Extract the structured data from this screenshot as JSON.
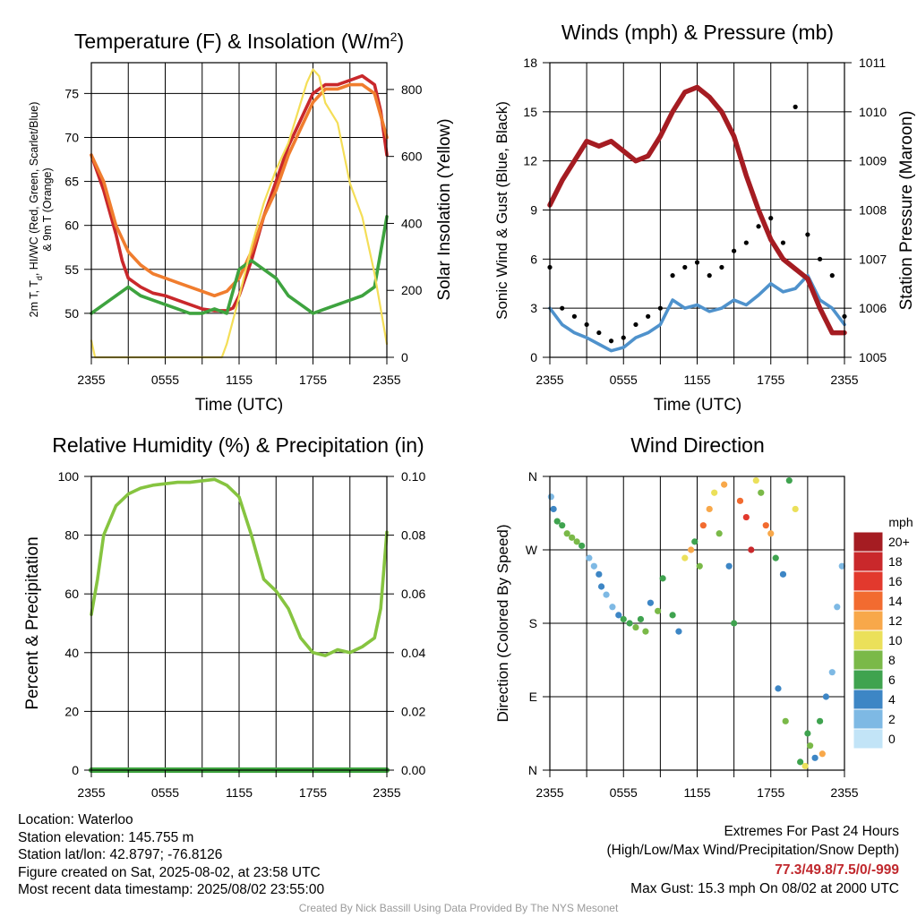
{
  "panels": {
    "temperature": {
      "title": "Temperature (F) & Insolation (W/m",
      "title_sup": "2",
      "title_end": ")",
      "ylabel_line1": "2m T, T",
      "ylabel_sub": "d",
      "ylabel_line1_end": ", HI/WC (Red, Green, Scarlet/Blue)",
      "ylabel_line2": "& 9m T (Orange)",
      "y2label": "Solar Insolation (Yellow)",
      "xlabel": "Time (UTC)"
    },
    "winds": {
      "title": "Winds (mph) & Pressure (mb)",
      "ylabel": "Sonic Wind & Gust (Blue, Black)",
      "y2label": "Station Pressure (Maroon)",
      "xlabel": "Time (UTC)"
    },
    "humidity": {
      "title": "Relative Humidity (%) & Precipitation (in)",
      "ylabel": "Percent & Precipitation"
    },
    "direction": {
      "title": "Wind Direction",
      "ylabel": "Direction (Colored By Speed)",
      "legend_title": "mph",
      "legend_labels": [
        "20+",
        "18",
        "16",
        "14",
        "12",
        "10",
        "8",
        "6",
        "4",
        "2",
        "0"
      ],
      "legend_colors": [
        "#a51c22",
        "#c9282b",
        "#e2392d",
        "#f26b30",
        "#f8a84a",
        "#ebe05a",
        "#7ab948",
        "#3fa34f",
        "#3d86c5",
        "#7eb9e4",
        "#c2e4f7"
      ]
    }
  },
  "footer": {
    "location": "Location: Waterloo",
    "elevation": "Station elevation: 145.755 m",
    "latlon": "Station lat/lon: 42.8797; -76.8126",
    "created": "Figure created on Sat, 2025-08-02, at 23:58 UTC",
    "recent": "Most recent data timestamp: 2025/08/02 23:55:00",
    "extremes_title": "Extremes For Past 24 Hours",
    "extremes_subtitle": "(High/Low/Max Wind/Precipitation/Snow Depth)",
    "extremes_values": "77.3/49.8/7.5/0/-999",
    "max_gust": "Max Gust: 15.3 mph On 08/02 at 2000 UTC",
    "credit": "Created By Nick Bassill Using Data Provided By The NYS Mesonet"
  },
  "chart_data": [
    {
      "type": "line",
      "title": "Temperature (F) & Insolation (W/m2)",
      "xlabel": "Time (UTC)",
      "ylabel": "2m T, Td, HI/WC (Red, Green, Scarlet/Blue) & 9m T (Orange)",
      "y2label": "Solar Insolation (Yellow)",
      "x_ticks": [
        "2355",
        "0555",
        "1155",
        "1755",
        "2355"
      ],
      "x_hours": [
        0,
        3,
        6,
        9,
        12,
        15,
        18,
        21,
        24
      ],
      "y_ticks": [
        50,
        55,
        60,
        65,
        70,
        75
      ],
      "ylim": [
        45,
        78.5
      ],
      "y2_ticks": [
        0,
        200,
        400,
        600,
        800
      ],
      "y2lim": [
        0,
        880
      ],
      "grid": true,
      "series": [
        {
          "name": "2m T",
          "color": "#c9282b",
          "axis": "left",
          "x": [
            0,
            1,
            2,
            2.5,
            3,
            4,
            5,
            6,
            7,
            8,
            9,
            10,
            11,
            11.5,
            12,
            13,
            14,
            15,
            16,
            17,
            18,
            19,
            20,
            21,
            22,
            23,
            23.5,
            24
          ],
          "y": [
            68,
            64,
            59,
            56,
            54,
            53,
            52.3,
            52,
            51.5,
            51,
            50.5,
            50.3,
            50.3,
            50.6,
            52,
            56,
            61,
            65,
            69,
            72,
            75,
            76,
            76,
            76.5,
            77,
            76,
            73,
            68
          ]
        },
        {
          "name": "9m T",
          "color": "#f07d2e",
          "axis": "left",
          "x": [
            0,
            1,
            2,
            3,
            4,
            5,
            6,
            7,
            8,
            9,
            10,
            11,
            12,
            13,
            14,
            15,
            16,
            17,
            18,
            19,
            20,
            21,
            22,
            23,
            24
          ],
          "y": [
            68,
            65,
            60,
            57,
            55.5,
            54.5,
            54,
            53.5,
            53,
            52.5,
            52,
            52.5,
            54,
            57,
            61,
            64,
            68,
            71,
            74,
            75.5,
            75.5,
            76,
            76,
            75,
            70
          ]
        },
        {
          "name": "Td",
          "color": "#3ea33f",
          "axis": "left",
          "x": [
            0,
            1,
            2,
            3,
            4,
            5,
            6,
            7,
            8,
            9,
            10,
            11,
            12,
            13,
            14,
            15,
            16,
            17,
            18,
            19,
            20,
            21,
            22,
            23,
            23.5,
            24
          ],
          "y": [
            50,
            51,
            52,
            53,
            52,
            51.5,
            51,
            50.5,
            50,
            50,
            50.5,
            50,
            55,
            56,
            55,
            54,
            52,
            51,
            50,
            50.5,
            51,
            51.5,
            52,
            53,
            57,
            61
          ]
        },
        {
          "name": "Solar Insolation",
          "color": "#f4de57",
          "axis": "right",
          "x": [
            0,
            0.3,
            1,
            2,
            3,
            4,
            5,
            6,
            7,
            8,
            9,
            10,
            10.6,
            11,
            12,
            13,
            14,
            15,
            16,
            17,
            17.5,
            18,
            18.5,
            19,
            20,
            21,
            22,
            23,
            24
          ],
          "y": [
            50,
            0,
            0,
            0,
            0,
            0,
            0,
            0,
            0,
            0,
            0,
            0,
            0,
            40,
            180,
            330,
            460,
            560,
            640,
            760,
            820,
            860,
            840,
            760,
            700,
            520,
            420,
            250,
            40
          ]
        }
      ]
    },
    {
      "type": "line",
      "title": "Winds (mph) & Pressure (mb)",
      "xlabel": "Time (UTC)",
      "ylabel": "Sonic Wind & Gust (Blue, Black)",
      "y2label": "Station Pressure (Maroon)",
      "x_ticks": [
        "2355",
        "0555",
        "1155",
        "1755",
        "2355"
      ],
      "x_hours": [
        0,
        3,
        6,
        9,
        12,
        15,
        18,
        21,
        24
      ],
      "y_ticks": [
        0,
        3,
        6,
        9,
        12,
        15,
        18
      ],
      "ylim": [
        0,
        18
      ],
      "y2_ticks": [
        1005,
        1006,
        1007,
        1008,
        1009,
        1010,
        1011
      ],
      "y2lim": [
        1005,
        1011
      ],
      "grid": true,
      "series": [
        {
          "name": "Sonic Wind",
          "color": "#4f92cc",
          "axis": "left",
          "x": [
            0,
            1,
            2,
            3,
            4,
            5,
            6,
            7,
            8,
            9,
            10,
            11,
            12,
            13,
            14,
            15,
            16,
            17,
            18,
            19,
            20,
            21,
            22,
            23,
            24
          ],
          "y": [
            3,
            2,
            1.5,
            1.2,
            0.8,
            0.4,
            0.6,
            1.2,
            1.5,
            2,
            3.5,
            3,
            3.2,
            2.8,
            3,
            3.5,
            3.2,
            3.8,
            4.5,
            4,
            4.2,
            5,
            3.5,
            3,
            2
          ]
        },
        {
          "name": "Gust",
          "color": "#000000",
          "axis": "left",
          "marker": "dot",
          "x": [
            0,
            1,
            2,
            3,
            4,
            5,
            6,
            7,
            8,
            9,
            10,
            11,
            12,
            13,
            14,
            15,
            16,
            17,
            18,
            19,
            20,
            21,
            22,
            23,
            24
          ],
          "y": [
            5.5,
            3,
            2.5,
            2,
            1.5,
            1,
            1.2,
            2,
            2.5,
            3,
            5,
            5.5,
            5.8,
            5,
            5.5,
            6.5,
            7,
            8,
            8.5,
            7,
            15.3,
            7.5,
            6,
            5,
            2.5
          ]
        },
        {
          "name": "Station Pressure",
          "color": "#a51c22",
          "axis": "right",
          "x": [
            0,
            1,
            2,
            3,
            4,
            5,
            6,
            7,
            8,
            9,
            10,
            11,
            12,
            13,
            14,
            15,
            16,
            17,
            18,
            19,
            20,
            21,
            22,
            23,
            24
          ],
          "y": [
            1008.1,
            1008.6,
            1009,
            1009.4,
            1009.3,
            1009.4,
            1009.2,
            1009.0,
            1009.1,
            1009.5,
            1010.0,
            1010.4,
            1010.5,
            1010.3,
            1010.0,
            1009.5,
            1008.7,
            1008.0,
            1007.4,
            1007.0,
            1006.8,
            1006.6,
            1006.0,
            1005.5,
            1005.5
          ]
        }
      ]
    },
    {
      "type": "line",
      "title": "Relative Humidity (%) & Precipitation (in)",
      "ylabel": "Percent & Precipitation",
      "x_ticks": [
        "2355",
        "0555",
        "1155",
        "1755",
        "2355"
      ],
      "x_hours": [
        0,
        3,
        6,
        9,
        12,
        15,
        18,
        21,
        24
      ],
      "y_ticks": [
        0,
        20,
        40,
        60,
        80,
        100
      ],
      "ylim": [
        0,
        100
      ],
      "y2_ticks": [
        "0.00",
        "0.02",
        "0.04",
        "0.06",
        "0.08",
        "0.10"
      ],
      "y2lim": [
        0,
        0.1
      ],
      "grid": true,
      "series": [
        {
          "name": "Relative Humidity",
          "color": "#86c440",
          "axis": "left",
          "x": [
            0,
            0.5,
            1,
            2,
            3,
            4,
            5,
            6,
            7,
            8,
            9,
            10,
            11,
            12,
            13,
            14,
            15,
            16,
            17,
            18,
            19,
            20,
            21,
            22,
            23,
            23.5,
            24
          ],
          "y": [
            53,
            65,
            80,
            90,
            94,
            96,
            97,
            97.5,
            98,
            98,
            98.5,
            99,
            97,
            93,
            80,
            65,
            61,
            55,
            45,
            40,
            39,
            41,
            40,
            42,
            45,
            55,
            81
          ]
        },
        {
          "name": "Precipitation",
          "color": "#3ea33f",
          "axis": "right",
          "x": [
            0,
            24
          ],
          "y": [
            0,
            0
          ]
        }
      ]
    },
    {
      "type": "scatter",
      "title": "Wind Direction",
      "ylabel": "Direction (Colored By Speed)",
      "x_ticks": [
        "2355",
        "0555",
        "1155",
        "1755",
        "2355"
      ],
      "x_hours": [
        0,
        3,
        6,
        9,
        12,
        15,
        18,
        21,
        24
      ],
      "y_ticks": [
        "N",
        "E",
        "S",
        "W",
        "N"
      ],
      "ylim": [
        0,
        360
      ],
      "grid": true,
      "legend": "right",
      "points": [
        [
          0.1,
          335,
          1
        ],
        [
          0.3,
          320,
          2
        ],
        [
          0.6,
          305,
          3
        ],
        [
          1,
          300,
          3
        ],
        [
          1.4,
          290,
          4
        ],
        [
          1.8,
          285,
          4
        ],
        [
          2.2,
          280,
          4
        ],
        [
          2.6,
          275,
          3
        ],
        [
          3.2,
          260,
          1
        ],
        [
          3.6,
          250,
          1
        ],
        [
          4,
          240,
          2
        ],
        [
          4.2,
          225,
          2
        ],
        [
          4.6,
          215,
          1
        ],
        [
          5.1,
          200,
          1
        ],
        [
          5.6,
          190,
          2
        ],
        [
          6,
          185,
          3
        ],
        [
          6.5,
          180,
          3
        ],
        [
          7,
          175,
          4
        ],
        [
          7.4,
          185,
          3
        ],
        [
          7.8,
          170,
          4
        ],
        [
          8.2,
          205,
          2
        ],
        [
          8.8,
          195,
          4
        ],
        [
          9.2,
          235,
          3
        ],
        [
          10,
          190,
          3
        ],
        [
          10.5,
          170,
          2
        ],
        [
          11,
          260,
          5
        ],
        [
          11.5,
          270,
          6
        ],
        [
          11.8,
          280,
          3
        ],
        [
          12.2,
          250,
          4
        ],
        [
          12.5,
          300,
          7
        ],
        [
          13,
          320,
          6
        ],
        [
          13.4,
          340,
          5
        ],
        [
          13.8,
          290,
          4
        ],
        [
          14.2,
          350,
          6
        ],
        [
          14.6,
          250,
          2
        ],
        [
          15,
          180,
          3
        ],
        [
          15.5,
          330,
          7
        ],
        [
          16,
          310,
          8
        ],
        [
          16.4,
          270,
          9
        ],
        [
          16.8,
          355,
          5
        ],
        [
          17.2,
          340,
          4
        ],
        [
          17.6,
          300,
          7
        ],
        [
          18,
          290,
          6
        ],
        [
          18.4,
          260,
          3
        ],
        [
          19,
          240,
          2
        ],
        [
          19.5,
          355,
          3
        ],
        [
          20,
          320,
          5
        ],
        [
          20.4,
          10,
          3
        ],
        [
          20.8,
          5,
          5
        ],
        [
          21.2,
          30,
          4
        ],
        [
          21.6,
          15,
          2
        ],
        [
          22,
          60,
          3
        ],
        [
          22.5,
          90,
          2
        ],
        [
          23,
          120,
          1
        ],
        [
          23.4,
          200,
          1
        ],
        [
          23.8,
          250,
          1
        ],
        [
          22.2,
          20,
          6
        ],
        [
          21,
          45,
          3
        ],
        [
          18.6,
          100,
          2
        ],
        [
          19.2,
          60,
          4
        ]
      ]
    }
  ]
}
